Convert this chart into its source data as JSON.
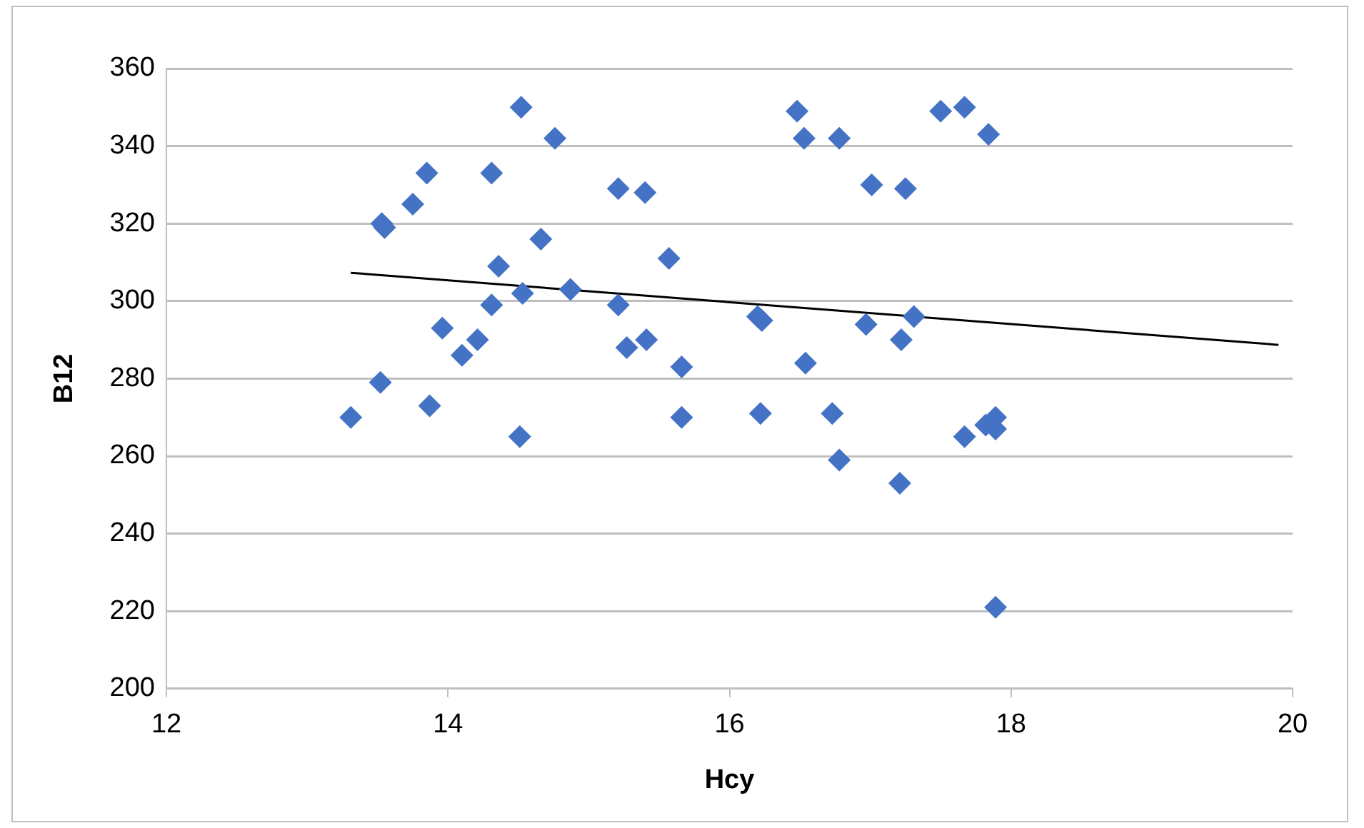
{
  "chart_data": {
    "type": "scatter",
    "xlabel": "Hcy",
    "ylabel": "B12",
    "xlim": [
      12,
      20
    ],
    "xticks": [
      12,
      14,
      16,
      18,
      20
    ],
    "ylim": [
      200,
      360
    ],
    "yticks": [
      200,
      220,
      240,
      260,
      280,
      300,
      320,
      340,
      360
    ],
    "grid": "y",
    "legend": false,
    "marker": "diamond",
    "series": [
      {
        "color": "#4472c4",
        "x": [
          13.31,
          13.53,
          13.55,
          13.75,
          13.85,
          13.52,
          13.87,
          13.96,
          14.1,
          14.21,
          14.31,
          14.31,
          14.36,
          14.52,
          14.51,
          14.53,
          14.66,
          14.76,
          14.87,
          15.21,
          15.4,
          15.21,
          15.27,
          15.41,
          15.57,
          15.66,
          15.66,
          16.2,
          16.23,
          16.22,
          16.48,
          16.53,
          16.54,
          16.78,
          16.73,
          16.78,
          17.01,
          17.25,
          16.97,
          17.22,
          17.31,
          17.21,
          17.5,
          17.67,
          17.84,
          17.67,
          17.82,
          17.89,
          17.89,
          17.89
        ],
        "values": [
          270,
          320,
          319,
          325,
          333,
          279,
          273,
          293,
          286,
          290,
          299,
          333,
          309,
          350,
          265,
          302,
          316,
          342,
          303,
          329,
          328,
          299,
          288,
          290,
          311,
          283,
          270,
          296,
          295,
          271,
          349,
          342,
          284,
          342,
          271,
          259,
          330,
          329,
          294,
          290,
          296,
          253,
          349,
          350,
          343,
          265,
          268,
          270,
          267,
          221
        ]
      },
      {
        "type": "line",
        "color": "#000000",
        "marker": "none",
        "x": [
          13.31,
          19.9
        ],
        "values": [
          307.3,
          288.7
        ]
      }
    ]
  }
}
